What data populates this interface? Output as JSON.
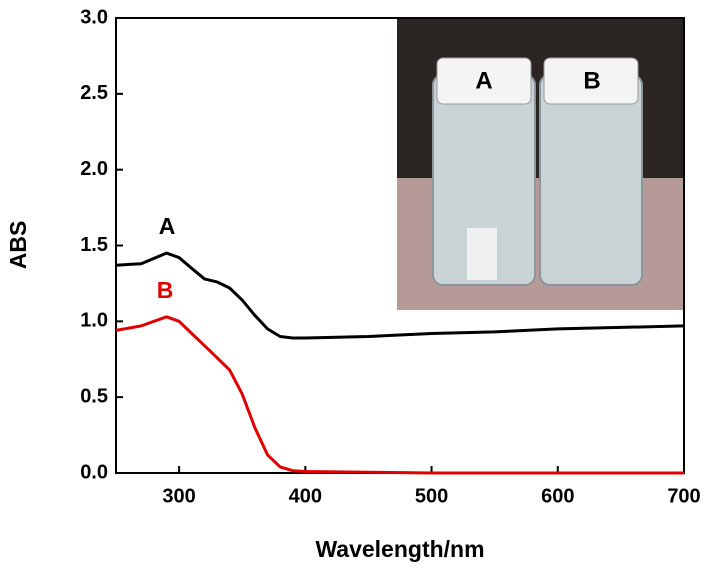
{
  "chart_data": {
    "type": "line",
    "x_label": "Wavelength/nm",
    "y_label": "ABS",
    "xlim": [
      250,
      700
    ],
    "xticks": [
      300,
      400,
      500,
      600,
      700
    ],
    "ylim": [
      0,
      3
    ],
    "yticks": [
      {
        "value": 0,
        "label": "0.0"
      },
      {
        "value": 0.5,
        "label": "0.5"
      },
      {
        "value": 1,
        "label": "1.0"
      },
      {
        "value": 1.5,
        "label": "1.5"
      },
      {
        "value": 2,
        "label": "2.0"
      },
      {
        "value": 2.5,
        "label": "2.5"
      },
      {
        "value": 3,
        "label": "3.0"
      }
    ],
    "x": [
      250,
      270,
      290,
      300,
      310,
      320,
      330,
      340,
      350,
      360,
      370,
      380,
      390,
      400,
      450,
      500,
      550,
      600,
      650,
      700
    ],
    "series": [
      {
        "name": "A",
        "color": "#000000",
        "values": [
          1.37,
          1.38,
          1.45,
          1.42,
          1.35,
          1.28,
          1.26,
          1.22,
          1.14,
          1.04,
          0.95,
          0.9,
          0.89,
          0.89,
          0.9,
          0.92,
          0.93,
          0.95,
          0.96,
          0.97
        ]
      },
      {
        "name": "B",
        "color": "#e00000",
        "values": [
          0.94,
          0.97,
          1.03,
          1.0,
          0.92,
          0.84,
          0.76,
          0.68,
          0.52,
          0.3,
          0.12,
          0.04,
          0.015,
          0.01,
          0.005,
          0,
          0,
          0,
          0,
          0
        ]
      }
    ]
  },
  "inset": {
    "labels": [
      "A",
      "B"
    ]
  }
}
